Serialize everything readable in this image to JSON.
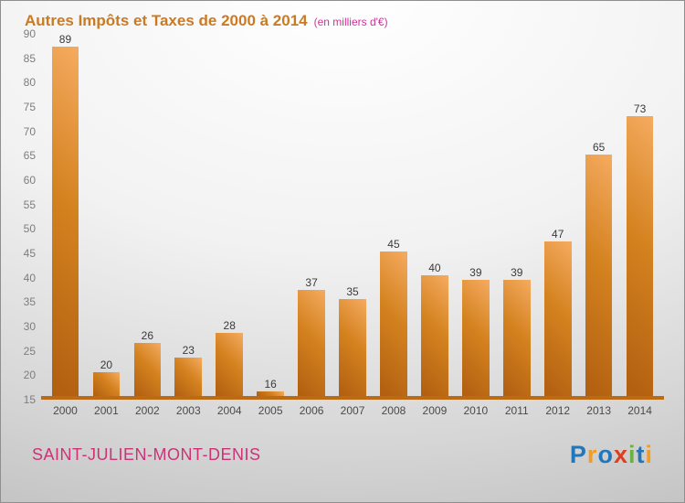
{
  "header": {
    "title": "Autres Impôts et Taxes de 2000 à 2014",
    "subtitle": "(en milliers d'€)"
  },
  "chart_data": {
    "type": "bar",
    "categories": [
      "2000",
      "2001",
      "2002",
      "2003",
      "2004",
      "2005",
      "2006",
      "2007",
      "2008",
      "2009",
      "2010",
      "2011",
      "2012",
      "2013",
      "2014"
    ],
    "values": [
      89,
      20,
      26,
      23,
      28,
      16,
      37,
      35,
      45,
      40,
      39,
      39,
      47,
      65,
      73
    ],
    "title": "Autres Impôts et Taxes de 2000 à 2014",
    "subtitle": "(en milliers d'€)",
    "xlabel": "",
    "ylabel": "",
    "ylim": [
      15,
      90
    ],
    "ytick_step": 5,
    "grid": false,
    "legend": false,
    "colors": {
      "bar_gradient_dark": "#b05e10",
      "bar_gradient_light": "#f5ab60",
      "baseline": "#bd6a14",
      "title": "#cc7a22",
      "subtitle": "#cc3399"
    }
  },
  "footer": {
    "commune": "SAINT-JULIEN-MONT-DENIS",
    "logo_letters": [
      {
        "char": "P",
        "color": "#2277bb"
      },
      {
        "char": "r",
        "color": "#f59b1e"
      },
      {
        "char": "o",
        "color": "#2277bb"
      },
      {
        "char": "x",
        "color": "#e03c1f"
      },
      {
        "char": "i",
        "color": "#6ab23f"
      },
      {
        "char": "t",
        "color": "#2277bb"
      },
      {
        "char": "i",
        "color": "#f59b1e"
      }
    ]
  }
}
